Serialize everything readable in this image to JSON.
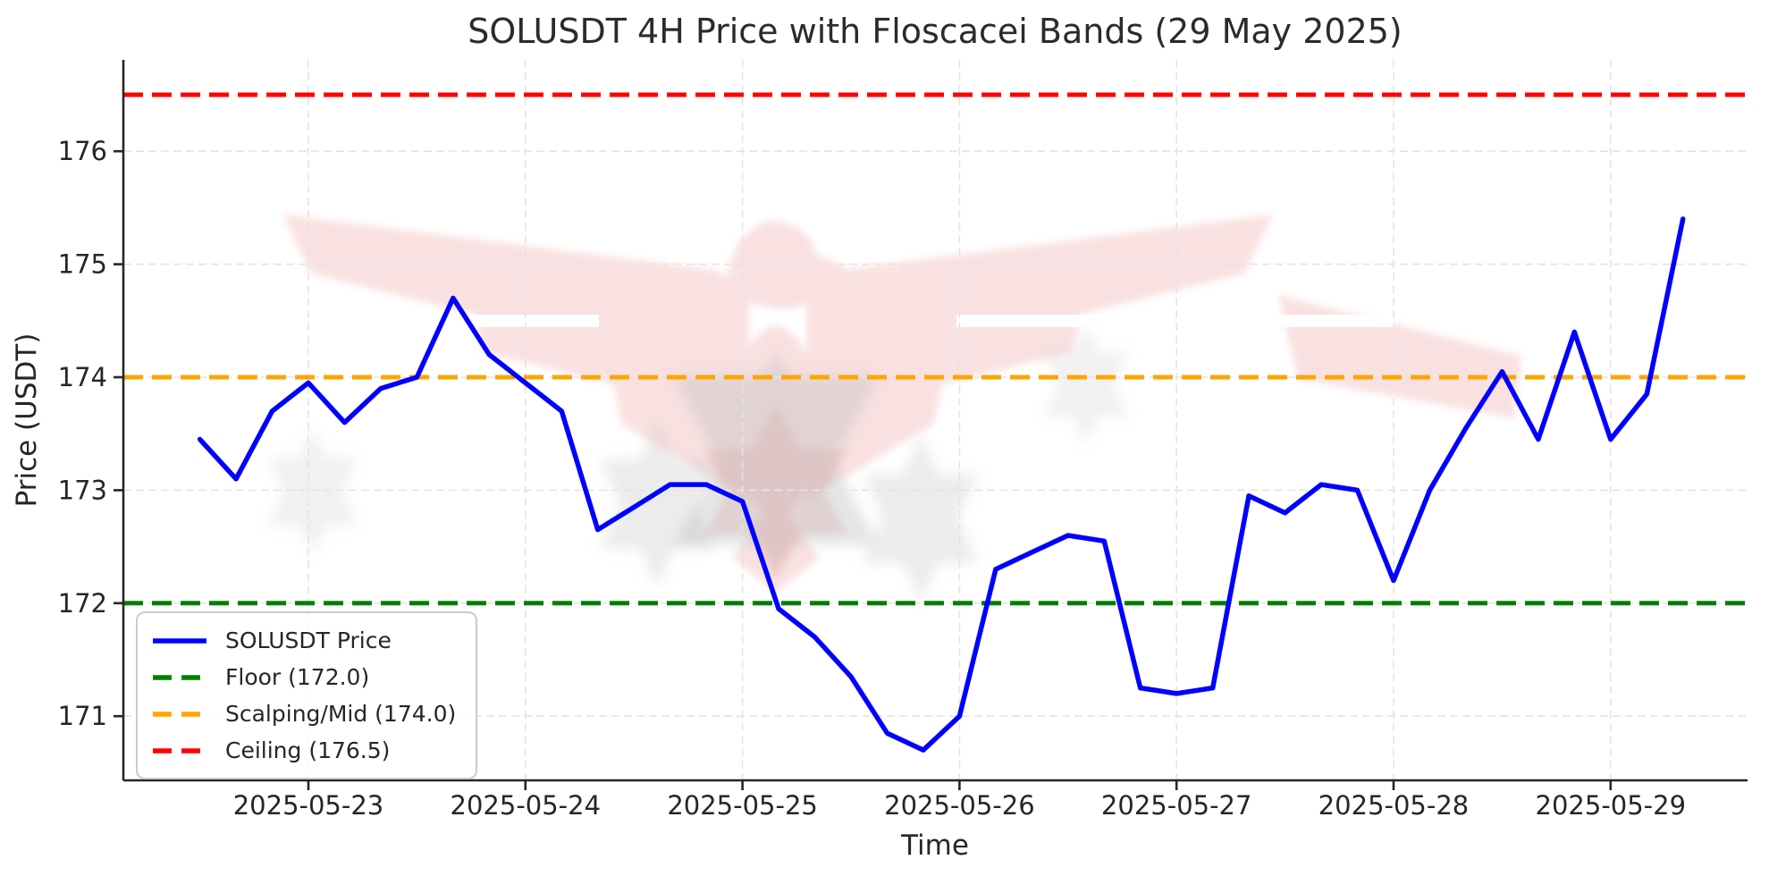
{
  "page": {
    "background": "#ffffff"
  },
  "chart_data": {
    "type": "line",
    "title": "SOLUSDT 4H Price with Floscacei Bands (29 May 2025)",
    "xlabel": "Time",
    "ylabel": "Price (USDT)",
    "grid": true,
    "legend_position": "lower left",
    "ylim": [
      170.5,
      176.85
    ],
    "y_ticks": [
      171,
      172,
      173,
      174,
      175,
      176
    ],
    "x_tick_labels": [
      "2025-05-23",
      "2025-05-24",
      "2025-05-25",
      "2025-05-26",
      "2025-05-27",
      "2025-05-28",
      "2025-05-29"
    ],
    "series": [
      {
        "name": "SOLUSDT Price",
        "color": "#0000ff",
        "x": [
          "2025-05-22 12:00",
          "2025-05-22 16:00",
          "2025-05-22 20:00",
          "2025-05-23 00:00",
          "2025-05-23 04:00",
          "2025-05-23 08:00",
          "2025-05-23 12:00",
          "2025-05-23 16:00",
          "2025-05-23 20:00",
          "2025-05-24 00:00",
          "2025-05-24 04:00",
          "2025-05-24 08:00",
          "2025-05-24 12:00",
          "2025-05-24 16:00",
          "2025-05-24 20:00",
          "2025-05-25 00:00",
          "2025-05-25 04:00",
          "2025-05-25 08:00",
          "2025-05-25 12:00",
          "2025-05-25 16:00",
          "2025-05-25 20:00",
          "2025-05-26 00:00",
          "2025-05-26 04:00",
          "2025-05-26 08:00",
          "2025-05-26 12:00",
          "2025-05-26 16:00",
          "2025-05-26 20:00",
          "2025-05-27 00:00",
          "2025-05-27 04:00",
          "2025-05-27 08:00",
          "2025-05-27 12:00",
          "2025-05-27 16:00",
          "2025-05-27 20:00",
          "2025-05-28 00:00",
          "2025-05-28 04:00",
          "2025-05-28 08:00",
          "2025-05-28 12:00",
          "2025-05-28 16:00",
          "2025-05-28 20:00",
          "2025-05-29 00:00",
          "2025-05-29 04:00",
          "2025-05-29 08:00"
        ],
        "values": [
          173.45,
          173.1,
          173.7,
          173.95,
          173.6,
          173.9,
          174.0,
          174.7,
          174.2,
          173.95,
          173.7,
          172.65,
          172.85,
          173.05,
          173.05,
          172.9,
          171.95,
          171.7,
          171.35,
          170.85,
          170.7,
          171.0,
          172.3,
          172.45,
          172.6,
          172.55,
          171.25,
          171.2,
          171.25,
          172.95,
          172.8,
          173.05,
          173.0,
          172.2,
          173.0,
          173.55,
          174.05,
          173.45,
          174.4,
          173.45,
          173.85,
          175.4
        ]
      }
    ],
    "bands": [
      {
        "name": "Floor",
        "value": 172.0,
        "color": "#008000",
        "label": "Floor (172.0)"
      },
      {
        "name": "Scalping/Mid",
        "value": 174.0,
        "color": "#ffa500",
        "label": "Scalping/Mid (174.0)"
      },
      {
        "name": "Ceiling",
        "value": 176.5,
        "color": "#ff0000",
        "label": "Ceiling (176.5)"
      }
    ]
  },
  "legend": {
    "items": [
      {
        "label": "SOLUSDT Price",
        "color": "#0000ff",
        "dashed": false
      },
      {
        "label": "Floor (172.0)",
        "color": "#008000",
        "dashed": true
      },
      {
        "label": "Scalping/Mid (174.0)",
        "color": "#ffa500",
        "dashed": true
      },
      {
        "label": "Ceiling (176.5)",
        "color": "#ff0000",
        "dashed": true
      }
    ]
  },
  "watermark": {
    "name": "eagle-logo-watermark"
  }
}
